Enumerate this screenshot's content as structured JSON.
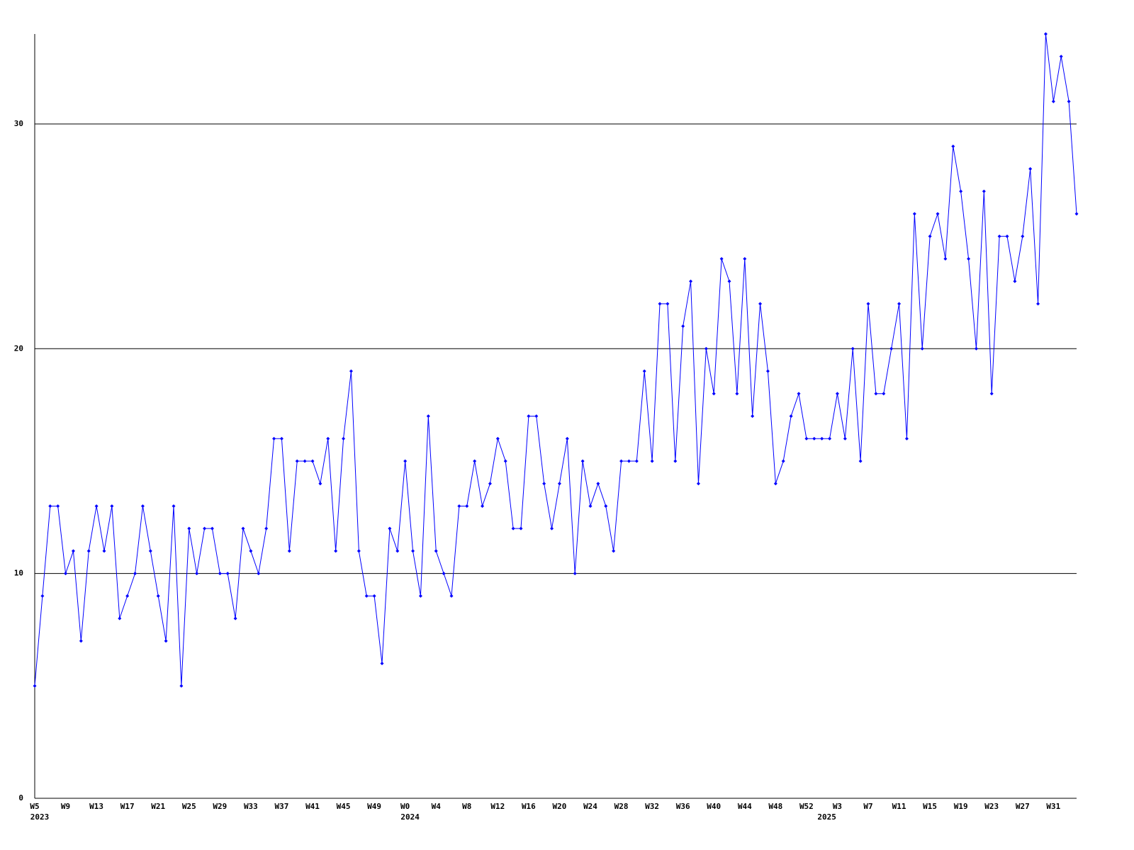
{
  "chart_data": {
    "type": "line",
    "color": "#0000ff",
    "grid": true,
    "ylim": [
      0,
      34
    ],
    "yticks": [
      0,
      10,
      20,
      30
    ],
    "categories": [
      "W5",
      null,
      null,
      null,
      "W9",
      null,
      null,
      null,
      "W13",
      null,
      null,
      null,
      "W17",
      null,
      null,
      null,
      "W21",
      null,
      null,
      null,
      "W25",
      null,
      null,
      null,
      "W29",
      null,
      null,
      null,
      "W33",
      null,
      null,
      null,
      "W37",
      null,
      null,
      null,
      "W41",
      null,
      null,
      null,
      "W45",
      null,
      null,
      null,
      "W49",
      null,
      null,
      null,
      "W0",
      null,
      null,
      null,
      "W4",
      null,
      null,
      null,
      "W8",
      null,
      null,
      null,
      "W12",
      null,
      null,
      null,
      "W16",
      null,
      null,
      null,
      "W20",
      null,
      null,
      null,
      "W24",
      null,
      null,
      null,
      "W28",
      null,
      null,
      null,
      "W32",
      null,
      null,
      null,
      "W36",
      null,
      null,
      null,
      "W40",
      null,
      null,
      null,
      "W44",
      null,
      null,
      null,
      "W48",
      null,
      null,
      null,
      "W52",
      null,
      null,
      null,
      "W3",
      null,
      null,
      null,
      "W7",
      null,
      null,
      null,
      "W11",
      null,
      null,
      null,
      "W15",
      null,
      null,
      null,
      "W19",
      null,
      null,
      null,
      "W23",
      null,
      null,
      null,
      "W27",
      null,
      null,
      null,
      "W31",
      null,
      null,
      null
    ],
    "year_labels": [
      "2023",
      null,
      null,
      null,
      null,
      null,
      null,
      null,
      null,
      null,
      null,
      null,
      null,
      null,
      null,
      null,
      null,
      null,
      null,
      null,
      null,
      null,
      null,
      null,
      null,
      null,
      null,
      null,
      null,
      null,
      null,
      null,
      null,
      null,
      null,
      null,
      null,
      null,
      null,
      null,
      null,
      null,
      null,
      null,
      null,
      null,
      null,
      null,
      "2024",
      null,
      null,
      null,
      null,
      null,
      null,
      null,
      null,
      null,
      null,
      null,
      null,
      null,
      null,
      null,
      null,
      null,
      null,
      null,
      null,
      null,
      null,
      null,
      null,
      null,
      null,
      null,
      null,
      null,
      null,
      null,
      null,
      null,
      null,
      null,
      null,
      null,
      null,
      null,
      null,
      null,
      null,
      null,
      null,
      null,
      null,
      null,
      null,
      null,
      null,
      null,
      null,
      null,
      "2025",
      null,
      null,
      null,
      null,
      null,
      null,
      null,
      null,
      null,
      null,
      null,
      null,
      null,
      null,
      null,
      null,
      null,
      null,
      null,
      null,
      null,
      null,
      null,
      null,
      null,
      null,
      null,
      null,
      null,
      null,
      null
    ],
    "values": [
      5,
      9,
      13,
      13,
      10,
      11,
      7,
      11,
      13,
      11,
      13,
      8,
      9,
      10,
      13,
      11,
      9,
      7,
      13,
      5,
      12,
      10,
      12,
      12,
      10,
      10,
      8,
      12,
      11,
      10,
      12,
      16,
      16,
      11,
      15,
      15,
      15,
      14,
      16,
      11,
      16,
      19,
      11,
      9,
      9,
      6,
      12,
      11,
      15,
      11,
      9,
      17,
      11,
      10,
      9,
      13,
      13,
      15,
      13,
      14,
      16,
      15,
      12,
      12,
      17,
      17,
      14,
      12,
      14,
      16,
      10,
      15,
      13,
      14,
      13,
      11,
      15,
      15,
      15,
      19,
      15,
      22,
      22,
      15,
      21,
      23,
      14,
      20,
      18,
      24,
      23,
      18,
      24,
      17,
      22,
      19,
      14,
      15,
      17,
      18,
      16,
      16,
      16,
      16,
      18,
      16,
      20,
      15,
      22,
      18,
      18,
      20,
      22,
      16,
      26,
      20,
      25,
      26,
      24,
      29,
      27,
      24,
      20,
      27,
      18,
      25,
      25,
      23,
      25,
      28,
      22,
      34,
      31,
      33,
      31,
      26
    ]
  }
}
